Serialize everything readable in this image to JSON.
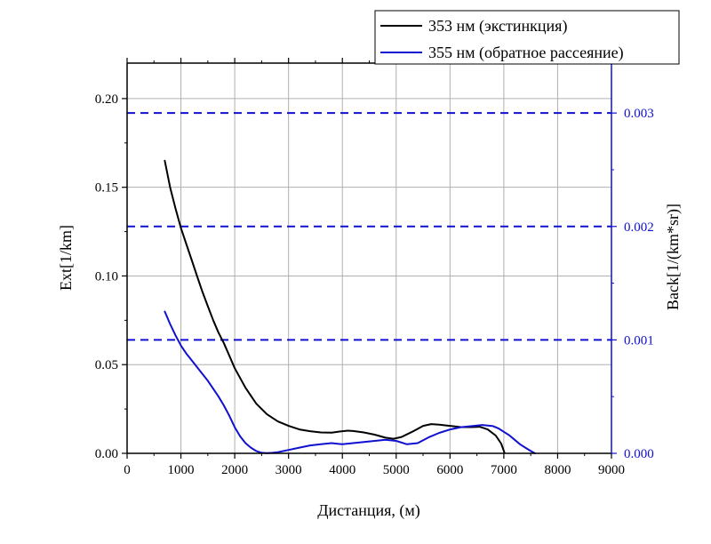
{
  "chart_data": {
    "type": "line",
    "title": "",
    "xlabel": "Дистанция, (м)",
    "ylabel_left": "Ext[1/km]",
    "ylabel_right": "Back[1/(km*sr)]",
    "xlim": [
      0,
      9000
    ],
    "ylim_left": [
      0,
      0.22
    ],
    "ylim_right": [
      0,
      0.00344
    ],
    "x_ticks": [
      "0",
      "1000",
      "2000",
      "3000",
      "4000",
      "5000",
      "6000",
      "7000",
      "8000",
      "9000"
    ],
    "x_tick_values": [
      0,
      1000,
      2000,
      3000,
      4000,
      5000,
      6000,
      7000,
      8000,
      9000
    ],
    "y_left_ticks": [
      "0.00",
      "0.05",
      "0.10",
      "0.15",
      "0.20"
    ],
    "y_left_tick_values": [
      0,
      0.05,
      0.1,
      0.15,
      0.2
    ],
    "y_right_ticks": [
      "0.000",
      "0.001",
      "0.002",
      "0.003"
    ],
    "y_right_tick_values": [
      0,
      0.001,
      0.002,
      0.003
    ],
    "grid": true,
    "legend_position": "top-right",
    "colors": {
      "extinction": "#000000",
      "backscatter": "#1010d0",
      "grid": "#b0b0b0",
      "right_axis": "#1010d0"
    },
    "reference_lines_right": [
      0.001,
      0.002,
      0.003
    ],
    "series": [
      {
        "name": "353 нм (экстинкция)",
        "axis": "left",
        "color": "#000000",
        "x": [
          700,
          800,
          900,
          1000,
          1100,
          1200,
          1300,
          1400,
          1500,
          1600,
          1700,
          1800,
          1900,
          2000,
          2200,
          2400,
          2600,
          2800,
          3000,
          3200,
          3400,
          3600,
          3800,
          4000,
          4100,
          4200,
          4400,
          4600,
          4800,
          4950,
          5100,
          5300,
          5500,
          5650,
          5800,
          6000,
          6200,
          6400,
          6550,
          6700,
          6850,
          6950,
          7010
        ],
        "y": [
          0.165,
          0.15,
          0.138,
          0.127,
          0.118,
          0.109,
          0.1,
          0.091,
          0.083,
          0.075,
          0.068,
          0.062,
          0.055,
          0.048,
          0.037,
          0.028,
          0.022,
          0.018,
          0.0155,
          0.0135,
          0.0125,
          0.0118,
          0.0117,
          0.0125,
          0.0128,
          0.0126,
          0.0118,
          0.0105,
          0.0088,
          0.0082,
          0.0092,
          0.0122,
          0.0155,
          0.0165,
          0.0162,
          0.0155,
          0.0148,
          0.0148,
          0.015,
          0.0135,
          0.01,
          0.0055,
          0.0005
        ]
      },
      {
        "name": "355 нм (обратное рассеяние)",
        "axis": "right",
        "color": "#1010d0",
        "x": [
          700,
          800,
          900,
          1000,
          1100,
          1200,
          1300,
          1400,
          1500,
          1600,
          1700,
          1800,
          1900,
          2000,
          2100,
          2200,
          2300,
          2400,
          2500,
          2600,
          2700,
          2800,
          3000,
          3200,
          3400,
          3600,
          3800,
          4000,
          4200,
          4400,
          4600,
          4800,
          5000,
          5200,
          5400,
          5600,
          5800,
          6000,
          6200,
          6400,
          6600,
          6800,
          6900,
          7000,
          7100,
          7200,
          7300,
          7400,
          7500,
          7580
        ],
        "y": [
          0.00125,
          0.00114,
          0.00104,
          0.00095,
          0.00088,
          0.00082,
          0.00076,
          0.0007,
          0.00064,
          0.00057,
          0.0005,
          0.00042,
          0.00033,
          0.00023,
          0.00015,
          9e-05,
          5e-05,
          2e-05,
          5e-06,
          2e-06,
          5e-06,
          1e-05,
          3e-05,
          5e-05,
          7e-05,
          8e-05,
          9e-05,
          8e-05,
          9e-05,
          0.0001,
          0.00011,
          0.00012,
          0.00011,
          8e-05,
          9e-05,
          0.00014,
          0.00018,
          0.00021,
          0.00023,
          0.00024,
          0.00025,
          0.00024,
          0.00022,
          0.00019,
          0.00016,
          0.00012,
          8e-05,
          5e-05,
          2e-05,
          0.0
        ]
      }
    ]
  }
}
